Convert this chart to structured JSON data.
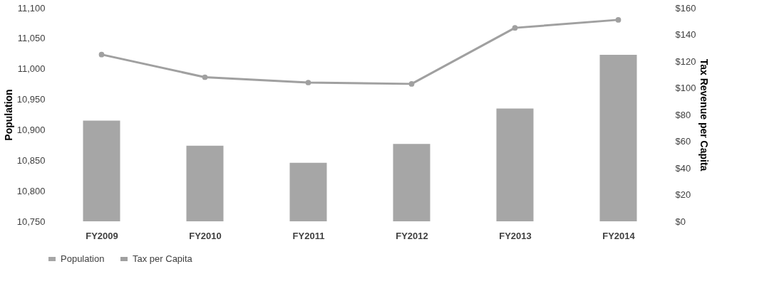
{
  "chart_data": {
    "type": "bar",
    "categories": [
      "FY2009",
      "FY2010",
      "FY2011",
      "FY2012",
      "FY2013",
      "FY2014"
    ],
    "ylabel": "Population",
    "y2label": "Tax Revenue per Capita",
    "series": [
      {
        "name": "Population",
        "color": "#a6a6a6",
        "values": [
          10915,
          10874,
          10846,
          10877,
          10935,
          11023
        ]
      },
      {
        "name": "Tax per Capita",
        "type": "line",
        "axis": "y2",
        "color": "#a0a0a0",
        "marker": "circle",
        "values": [
          125,
          108,
          104,
          103,
          145,
          151
        ]
      }
    ],
    "ylim": [
      10750,
      11100
    ],
    "yticks": [
      {
        "value": 10750,
        "label": "10,750"
      },
      {
        "value": 10800,
        "label": "10,800"
      },
      {
        "value": 10850,
        "label": "10,850"
      },
      {
        "value": 10900,
        "label": "10,900"
      },
      {
        "value": 10950,
        "label": "10,950"
      },
      {
        "value": 11000,
        "label": "11,000"
      },
      {
        "value": 11050,
        "label": "11,050"
      },
      {
        "value": 11100,
        "label": "11,100"
      }
    ],
    "y2lim": [
      0,
      160
    ],
    "y2ticks": [
      {
        "value": 0,
        "label": "$0"
      },
      {
        "value": 20,
        "label": "$20"
      },
      {
        "value": 40,
        "label": "$40"
      },
      {
        "value": 60,
        "label": "$60"
      },
      {
        "value": 80,
        "label": "$80"
      },
      {
        "value": 100,
        "label": "$100"
      },
      {
        "value": 120,
        "label": "$120"
      },
      {
        "value": 140,
        "label": "$140"
      },
      {
        "value": 160,
        "label": "$160"
      }
    ],
    "grid": false,
    "legend": "bottom"
  }
}
